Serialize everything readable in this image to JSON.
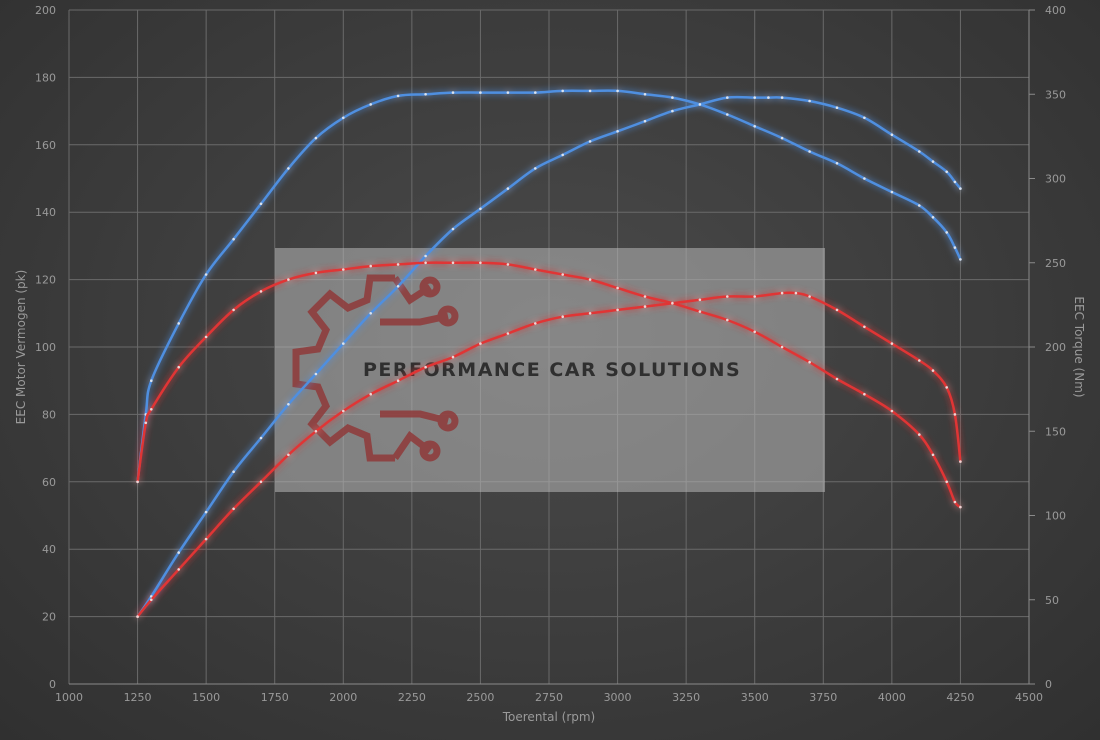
{
  "chart_data": {
    "type": "line",
    "xlabel": "Toerental (rpm)",
    "ylabel": "EEC Motor Vermogen (pk)",
    "y2label": "EEC Torque (Nm)",
    "xlim": [
      1000,
      4500
    ],
    "ylim": [
      0,
      200
    ],
    "y2lim": [
      0,
      400
    ],
    "x_ticks": [
      1000,
      1250,
      1500,
      1750,
      2000,
      2250,
      2500,
      2750,
      3000,
      3250,
      3500,
      3750,
      4000,
      4250,
      4500
    ],
    "y_ticks": [
      0,
      20,
      40,
      60,
      80,
      100,
      120,
      140,
      160,
      180,
      200
    ],
    "y2_ticks": [
      0,
      50,
      100,
      150,
      200,
      250,
      300,
      350,
      400
    ],
    "grid": true,
    "legend": "none",
    "colors": {
      "blue": "#4f8fe0",
      "red": "#e03434"
    },
    "series": [
      {
        "color": "blue",
        "axis": "left",
        "x": [
          1250,
          1300,
          1400,
          1500,
          1600,
          1700,
          1800,
          1900,
          2000,
          2100,
          2200,
          2300,
          2400,
          2500,
          2600,
          2700,
          2800,
          2900,
          3000,
          3100,
          3200,
          3300,
          3400,
          3500,
          3550,
          3600,
          3700,
          3800,
          3900,
          4000,
          4100,
          4150,
          4200,
          4230,
          4250
        ],
        "values": [
          20,
          26,
          39,
          51,
          63,
          73,
          83,
          92,
          101,
          110,
          118,
          127,
          135,
          141,
          147,
          153,
          157,
          161,
          164,
          167,
          170,
          172,
          174,
          174,
          174,
          174,
          173,
          171,
          168,
          163,
          158,
          155,
          152,
          149,
          147
        ]
      },
      {
        "color": "blue",
        "axis": "right",
        "x": [
          1250,
          1280,
          1300,
          1400,
          1500,
          1600,
          1700,
          1800,
          1900,
          2000,
          2100,
          2200,
          2300,
          2400,
          2500,
          2600,
          2700,
          2800,
          2900,
          3000,
          3100,
          3200,
          3300,
          3400,
          3500,
          3600,
          3700,
          3800,
          3900,
          4000,
          4100,
          4150,
          4200,
          4230,
          4250
        ],
        "values": [
          120,
          160,
          180,
          214,
          243,
          264,
          285,
          306,
          324,
          336,
          344,
          349,
          350,
          351,
          351,
          351,
          351,
          352,
          352,
          352,
          350,
          348,
          344,
          338,
          331,
          324,
          316,
          309,
          300,
          292,
          284,
          277,
          268,
          259,
          252
        ]
      },
      {
        "color": "red",
        "axis": "left",
        "x": [
          1250,
          1300,
          1400,
          1500,
          1600,
          1700,
          1800,
          1900,
          2000,
          2100,
          2200,
          2300,
          2400,
          2500,
          2600,
          2700,
          2800,
          2900,
          3000,
          3100,
          3200,
          3300,
          3400,
          3500,
          3600,
          3650,
          3700,
          3800,
          3900,
          4000,
          4100,
          4150,
          4200,
          4230,
          4250
        ],
        "values": [
          20,
          25,
          34,
          43,
          52,
          60,
          68,
          75,
          81,
          86,
          90,
          94,
          97,
          101,
          104,
          107,
          109,
          110,
          111,
          112,
          113,
          114,
          115,
          115,
          116,
          116,
          115,
          111,
          106,
          101,
          96,
          93,
          88,
          80,
          66
        ]
      },
      {
        "color": "red",
        "axis": "right",
        "x": [
          1250,
          1280,
          1300,
          1400,
          1500,
          1600,
          1700,
          1800,
          1900,
          2000,
          2100,
          2200,
          2300,
          2400,
          2500,
          2600,
          2700,
          2800,
          2900,
          3000,
          3100,
          3200,
          3300,
          3400,
          3500,
          3600,
          3700,
          3800,
          3900,
          4000,
          4100,
          4150,
          4200,
          4230,
          4250
        ],
        "values": [
          120,
          155,
          163,
          188,
          206,
          222,
          233,
          240,
          244,
          246,
          248,
          249,
          250,
          250,
          250,
          249,
          246,
          243,
          240,
          235,
          230,
          226,
          221,
          216,
          209,
          200,
          191,
          181,
          172,
          162,
          148,
          136,
          120,
          108,
          105
        ]
      }
    ]
  },
  "watermark": {
    "text": "PERFORMANCE CAR SOLUTIONS"
  }
}
